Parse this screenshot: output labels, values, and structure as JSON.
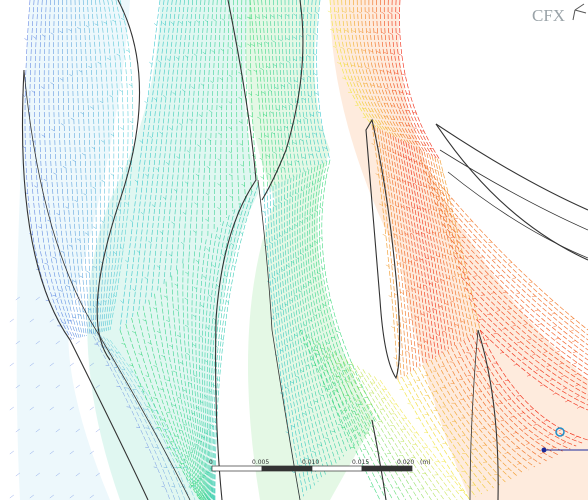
{
  "scene": {
    "brand_text": "CFX",
    "scale_ticks": [
      "0",
      "0.005",
      "0.010",
      "0.015",
      "0.020",
      "(m)"
    ],
    "colors": {
      "background": "#ffffff",
      "outline": "#333333",
      "low": "#2a55d8",
      "low_mid": "#1ec0c8",
      "mid": "#22d36a",
      "high_mid": "#f2e640",
      "high": "#f12a14"
    },
    "icon_names": [
      "triad-axis-icon",
      "probe-marker-icon"
    ]
  }
}
